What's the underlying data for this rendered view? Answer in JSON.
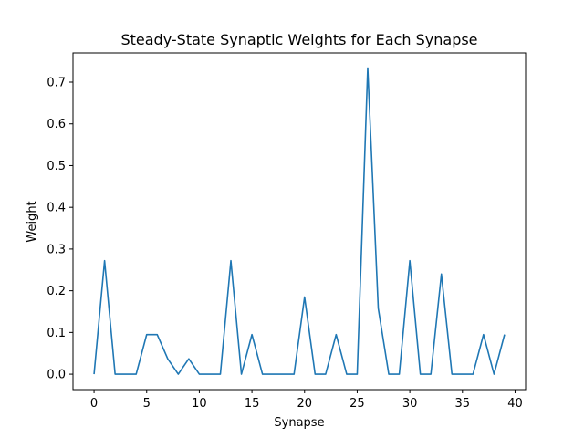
{
  "chart_data": {
    "type": "line",
    "title": "Steady-State Synaptic Weights for Each Synapse",
    "xlabel": "Synapse",
    "ylabel": "Weight",
    "xlim": [
      -2,
      41
    ],
    "ylim": [
      -0.037,
      0.77
    ],
    "xticks": [
      0,
      5,
      10,
      15,
      20,
      25,
      30,
      35,
      40
    ],
    "yticks": [
      0.0,
      0.1,
      0.2,
      0.3,
      0.4,
      0.5,
      0.6,
      0.7
    ],
    "xtick_labels": [
      "0",
      "5",
      "10",
      "15",
      "20",
      "25",
      "30",
      "35",
      "40"
    ],
    "ytick_labels": [
      "0.0",
      "0.1",
      "0.2",
      "0.3",
      "0.4",
      "0.5",
      "0.6",
      "0.7"
    ],
    "grid": false,
    "line_color": "#1f77b4",
    "series": [
      {
        "x": [
          0,
          1,
          2,
          3,
          4,
          5,
          6,
          7,
          8,
          9,
          10,
          11,
          12,
          13,
          14,
          15,
          16,
          17,
          18,
          19,
          20,
          21,
          22,
          23,
          24,
          25,
          26,
          27,
          28,
          29,
          30,
          31,
          32,
          33,
          34,
          35,
          36,
          37,
          38,
          39
        ],
        "values": [
          0.0,
          0.272,
          0.0,
          0.0,
          0.0,
          0.095,
          0.095,
          0.037,
          0.0,
          0.037,
          0.0,
          0.0,
          0.0,
          0.272,
          0.0,
          0.095,
          0.0,
          0.0,
          0.0,
          0.0,
          0.185,
          0.0,
          0.0,
          0.095,
          0.0,
          0.0,
          0.734,
          0.158,
          0.0,
          0.0,
          0.272,
          0.0,
          0.0,
          0.24,
          0.0,
          0.0,
          0.0,
          0.095,
          0.0,
          0.095
        ]
      }
    ]
  }
}
